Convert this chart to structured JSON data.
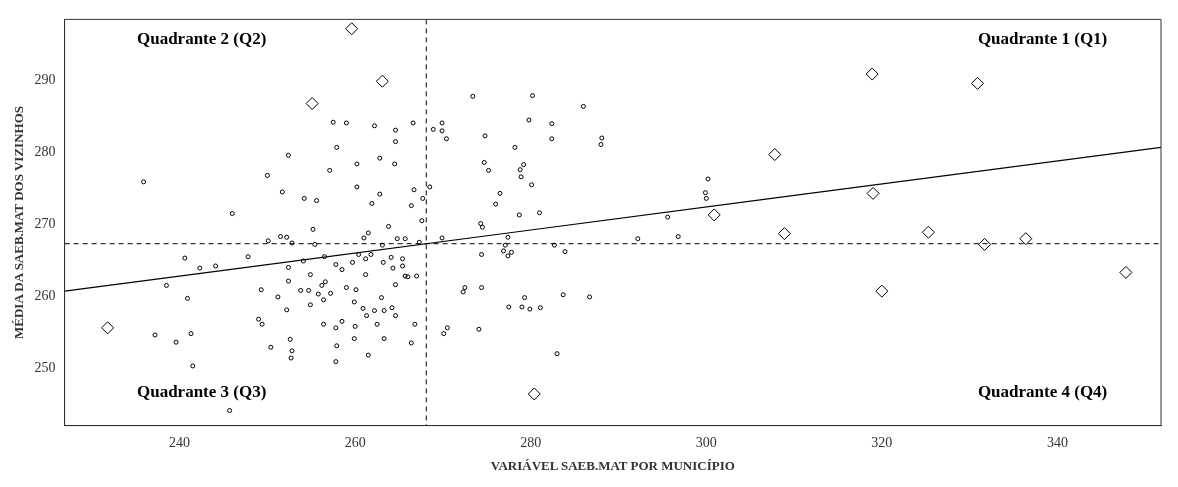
{
  "chart_data": {
    "type": "scatter",
    "xlabel": "VARIÁVEL SAEB.MAT POR MUNICÍPIO",
    "ylabel": "MÉDIA DA SAEB.MAT DOS VIZINHOS",
    "xlim": [
      226.9,
      351.8
    ],
    "ylim": [
      242,
      298.5
    ],
    "xticks": [
      240,
      260,
      280,
      300,
      320,
      340
    ],
    "yticks": [
      250,
      260,
      270,
      280,
      290
    ],
    "grid": false,
    "legend": false,
    "annotations": [
      "Quadrante 2 (Q2)",
      "Quadrante 1 (Q1)",
      "Quadrante 3 (Q3)",
      "Quadrante 4 (Q4)"
    ],
    "ref_lines": [
      {
        "axis": "x",
        "value": 268.1,
        "line_style": "dashed",
        "color": "#000000"
      },
      {
        "axis": "y",
        "value": 267.3,
        "line_style": "dashed",
        "color": "#000000"
      }
    ],
    "series": [
      {
        "type": "scatter",
        "marker": "circle",
        "color": "#000000",
        "x": [
          235.9,
          252.4,
          250.0,
          251.7,
          254.2,
          246.0,
          240.6,
          242.3,
          244.1,
          247.8,
          250.1,
          251.5,
          252.2,
          252.8,
          254.1,
          252.4,
          238.5,
          240.9,
          252.4,
          249.3,
          251.2,
          253.8,
          254.7,
          254.9,
          254.9,
          252.2,
          249.0,
          249.4,
          237.2,
          239.6,
          241.3,
          252.6,
          250.4,
          252.8,
          252.7,
          241.5,
          245.7,
          257.5,
          259.0,
          262.2,
          264.6,
          266.6,
          257.9,
          264.6,
          260.2,
          262.8,
          264.5,
          257.1,
          260.2,
          262.8,
          266.7,
          255.6,
          261.9,
          266.4,
          267.7,
          267.6,
          268.5,
          273.4,
          280.2,
          269.9,
          268.9,
          269.9,
          270.4,
          274.8,
          279.8,
          278.2,
          274.7,
          275.2,
          279.2,
          278.8,
          278.9,
          280.1,
          276.5,
          276.0,
          278.7,
          255.2,
          263.8,
          261.5,
          261.0,
          264.8,
          265.7,
          255.4,
          263.1,
          267.3,
          256.5,
          260.4,
          261.2,
          261.8,
          264.1,
          265.4,
          257.8,
          258.5,
          259.7,
          263.2,
          264.3,
          265.4,
          261.2,
          265.7,
          266.0,
          267.0,
          256.2,
          256.6,
          264.6,
          255.8,
          257.2,
          259.0,
          260.1,
          256.4,
          259.9,
          263.0,
          260.9,
          262.2,
          263.3,
          264.2,
          261.3,
          264.6,
          256.4,
          258.5,
          262.5,
          266.8,
          257.8,
          260.0,
          259.9,
          263.3,
          266.4,
          257.9,
          261.5,
          257.8,
          269.9,
          274.3,
          274.5,
          277.4,
          277.1,
          276.9,
          277.8,
          277.4,
          274.4,
          272.5,
          272.3,
          274.4,
          279.3,
          277.5,
          279.0,
          279.9,
          270.5,
          270.1,
          274.1,
          286.0,
          282.4,
          282.4,
          288.1,
          288.0,
          281.0,
          300.2,
          299.9,
          300.0,
          295.6,
          296.8,
          292.2,
          282.7,
          283.9,
          283.7,
          286.7,
          281.1,
          283.0
        ],
        "values": [
          275.9,
          279.6,
          276.8,
          274.5,
          273.6,
          271.5,
          265.3,
          263.9,
          264.2,
          265.5,
          267.7,
          268.3,
          268.2,
          267.4,
          264.9,
          264.0,
          261.5,
          259.7,
          262.1,
          260.9,
          259.9,
          260.8,
          260.8,
          263.0,
          258.8,
          258.1,
          256.8,
          256.1,
          254.6,
          253.6,
          254.8,
          254.0,
          252.9,
          252.4,
          251.4,
          250.3,
          244.1,
          284.2,
          284.1,
          283.7,
          283.1,
          284.1,
          280.7,
          281.5,
          278.4,
          279.2,
          278.4,
          277.5,
          275.2,
          274.2,
          274.8,
          273.3,
          272.9,
          272.6,
          273.6,
          270.5,
          275.2,
          287.8,
          287.9,
          284.1,
          283.2,
          283.0,
          281.9,
          282.3,
          284.5,
          280.7,
          278.6,
          277.5,
          278.3,
          277.6,
          276.6,
          275.5,
          274.3,
          272.8,
          271.3,
          269.3,
          269.7,
          268.8,
          268.1,
          268.0,
          268.0,
          267.2,
          267.1,
          267.5,
          265.5,
          265.8,
          265.2,
          265.8,
          265.4,
          265.2,
          264.4,
          263.7,
          264.7,
          264.7,
          263.9,
          264.2,
          263.0,
          262.8,
          262.7,
          262.8,
          261.5,
          262.0,
          261.6,
          260.3,
          260.4,
          261.2,
          260.9,
          259.5,
          259.2,
          259.8,
          258.3,
          258.0,
          258.0,
          258.4,
          257.3,
          257.3,
          256.1,
          256.5,
          256.1,
          256.1,
          255.6,
          255.8,
          254.1,
          254.1,
          253.5,
          253.1,
          251.8,
          250.9,
          268.1,
          270.1,
          269.6,
          268.2,
          267.1,
          266.3,
          266.1,
          265.6,
          265.8,
          261.2,
          260.6,
          261.2,
          259.8,
          258.5,
          258.5,
          258.2,
          255.6,
          254.8,
          255.4,
          286.4,
          284.0,
          281.9,
          282.0,
          281.1,
          271.6,
          276.3,
          274.4,
          273.6,
          271.0,
          268.3,
          268.0,
          267.1,
          266.2,
          260.2,
          259.9,
          258.4,
          252.0
        ]
      },
      {
        "type": "scatter",
        "marker": "diamond",
        "color": "#000000",
        "x": [
          231.8,
          255.1,
          259.6,
          263.1,
          280.4,
          300.9,
          307.8,
          308.9,
          318.9,
          319.0,
          320.0,
          325.3,
          331.7,
          330.9,
          336.4,
          347.8
        ],
        "values": [
          255.6,
          286.8,
          297.2,
          289.9,
          246.4,
          271.3,
          279.7,
          268.7,
          290.9,
          274.3,
          260.7,
          268.9,
          267.2,
          289.6,
          268.0,
          263.3
        ]
      },
      {
        "type": "line",
        "marker": "none",
        "line_style": "solid",
        "color": "#000000",
        "x": [
          226.9,
          351.8
        ],
        "values": [
          260.7,
          280.7
        ]
      }
    ]
  }
}
